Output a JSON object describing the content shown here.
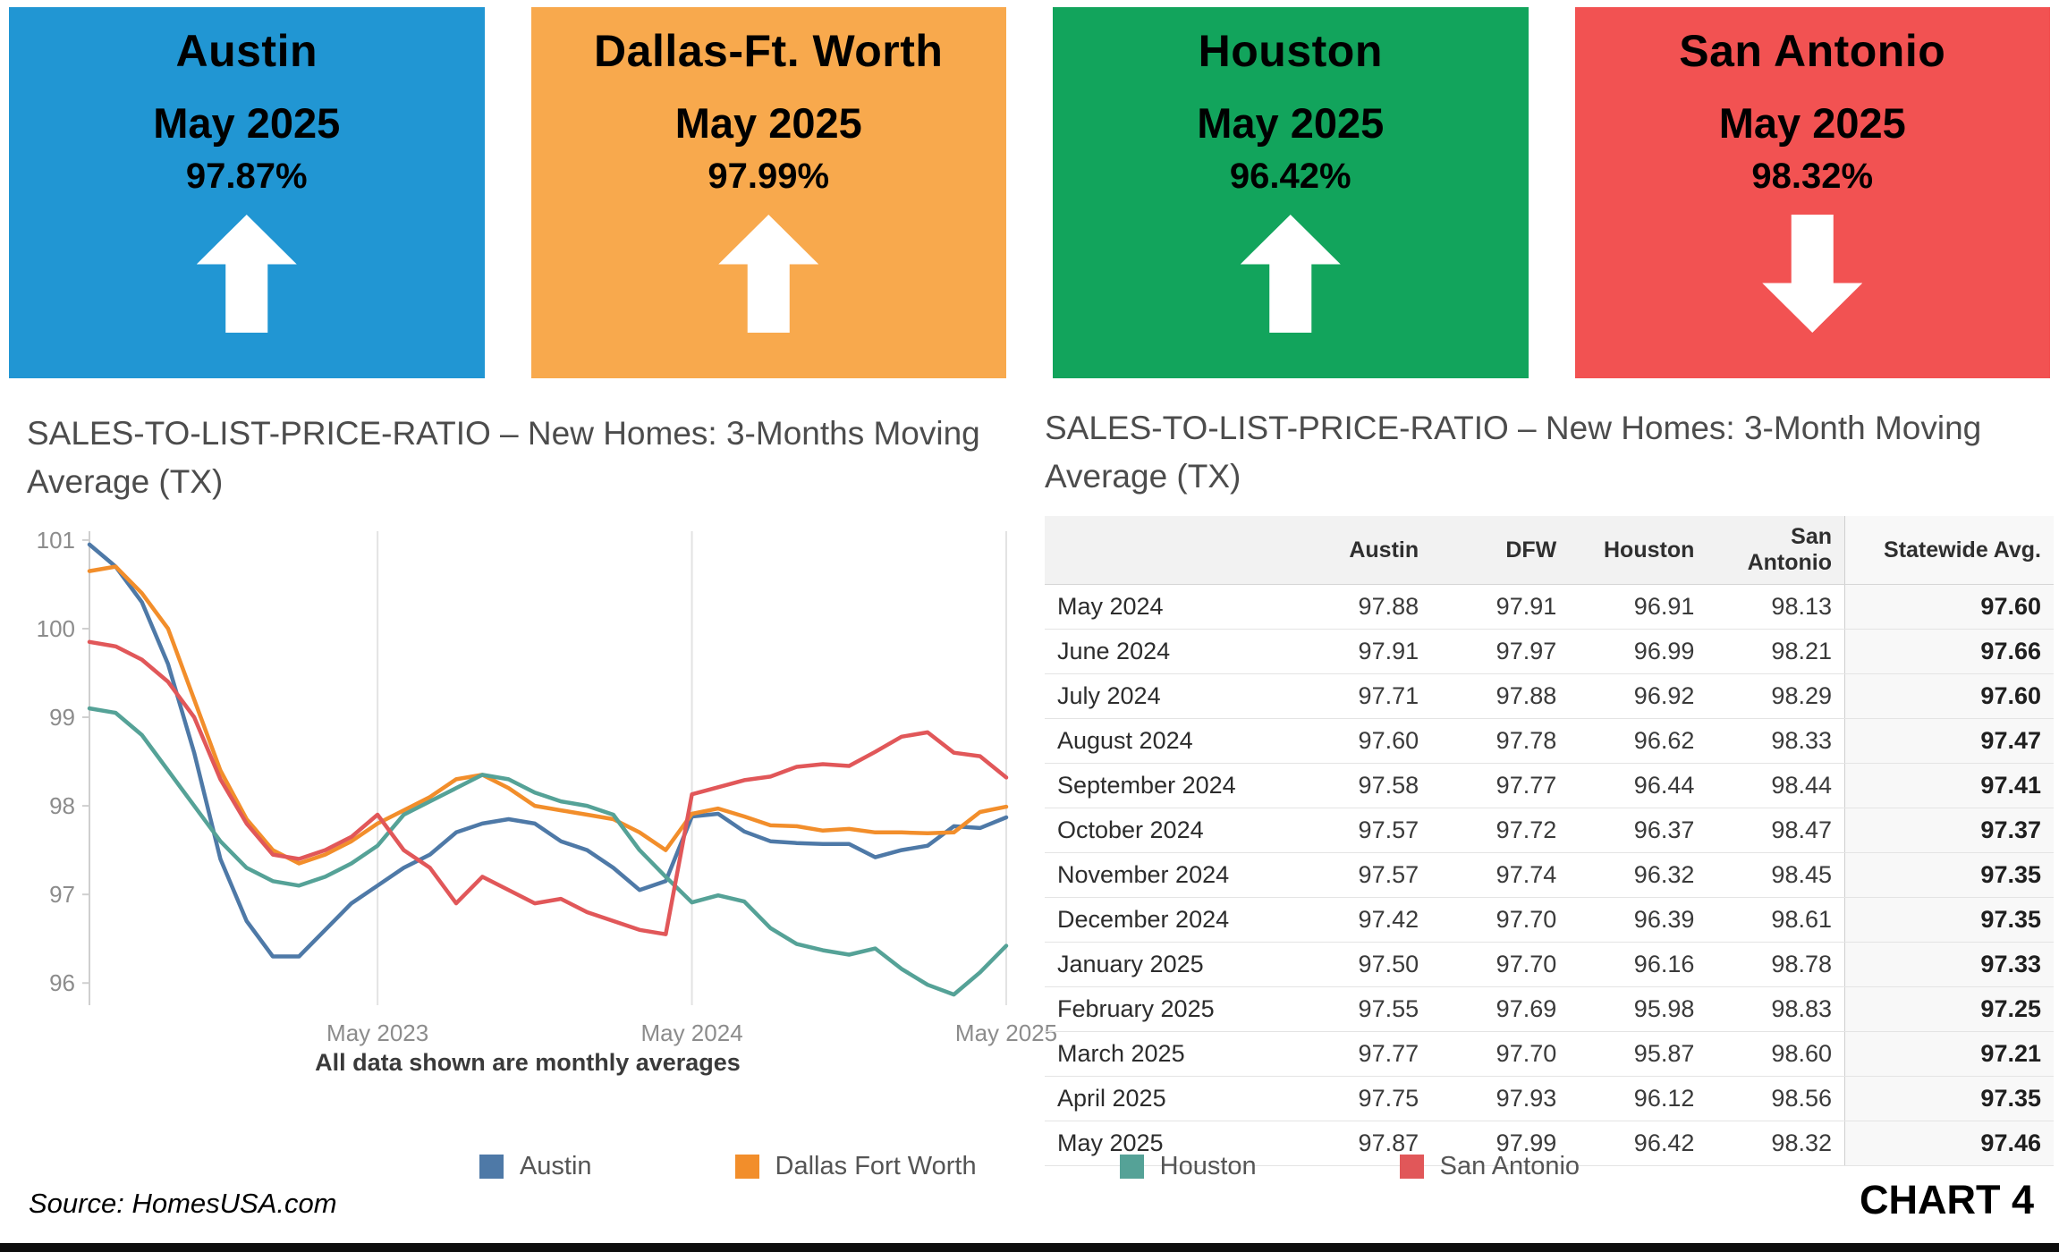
{
  "cards": [
    {
      "city": "Austin",
      "period": "May 2025",
      "value": "97.87%",
      "direction": "up",
      "color": "#2196d3"
    },
    {
      "city": "Dallas-Ft. Worth",
      "period": "May 2025",
      "value": "97.99%",
      "direction": "up",
      "color": "#f8a94d"
    },
    {
      "city": "Houston",
      "period": "May 2025",
      "value": "96.42%",
      "direction": "up",
      "color": "#12a45c"
    },
    {
      "city": "San Antonio",
      "period": "May 2025",
      "value": "98.32%",
      "direction": "down",
      "color": "#f25252"
    }
  ],
  "chart_data": [
    {
      "type": "line",
      "title": "SALES-TO-LIST-PRICE-RATIO – New Homes: 3-Months Moving Average (TX)",
      "caption": "All data shown are monthly averages",
      "xlabel": "",
      "ylabel": "",
      "ylim": [
        95.75,
        101.1
      ],
      "yticks": [
        96,
        97,
        98,
        99,
        100,
        101
      ],
      "x_tick_labels": [
        "May 2023",
        "May 2024",
        "May 2025"
      ],
      "legend_position": "bottom",
      "grid": "vertical-only",
      "x": [
        "Jun 2022",
        "Jul 2022",
        "Aug 2022",
        "Sep 2022",
        "Oct 2022",
        "Nov 2022",
        "Dec 2022",
        "Jan 2023",
        "Feb 2023",
        "Mar 2023",
        "Apr 2023",
        "May 2023",
        "Jun 2023",
        "Jul 2023",
        "Aug 2023",
        "Sep 2023",
        "Oct 2023",
        "Nov 2023",
        "Dec 2023",
        "Jan 2024",
        "Feb 2024",
        "Mar 2024",
        "Apr 2024",
        "May 2024",
        "Jun 2024",
        "Jul 2024",
        "Aug 2024",
        "Sep 2024",
        "Oct 2024",
        "Nov 2024",
        "Dec 2024",
        "Jan 2025",
        "Feb 2025",
        "Mar 2025",
        "Apr 2025",
        "May 2025"
      ],
      "series": [
        {
          "name": "Austin",
          "color": "#4e79a7",
          "values": [
            100.95,
            100.7,
            100.3,
            99.6,
            98.6,
            97.4,
            96.7,
            96.3,
            96.3,
            96.6,
            96.9,
            97.1,
            97.3,
            97.45,
            97.7,
            97.8,
            97.85,
            97.8,
            97.6,
            97.5,
            97.3,
            97.05,
            97.15,
            97.88,
            97.91,
            97.71,
            97.6,
            97.58,
            97.57,
            97.57,
            97.42,
            97.5,
            97.55,
            97.77,
            97.75,
            97.87
          ]
        },
        {
          "name": "Dallas Fort Worth",
          "color": "#f28e2b",
          "values": [
            100.65,
            100.7,
            100.4,
            100.0,
            99.2,
            98.4,
            97.85,
            97.5,
            97.35,
            97.45,
            97.6,
            97.8,
            97.95,
            98.1,
            98.3,
            98.35,
            98.2,
            98.0,
            97.95,
            97.9,
            97.85,
            97.7,
            97.5,
            97.91,
            97.97,
            97.88,
            97.78,
            97.77,
            97.72,
            97.74,
            97.7,
            97.7,
            97.69,
            97.7,
            97.93,
            97.99
          ]
        },
        {
          "name": "Houston",
          "color": "#55a297",
          "values": [
            99.1,
            99.05,
            98.8,
            98.4,
            98.0,
            97.6,
            97.3,
            97.15,
            97.1,
            97.2,
            97.35,
            97.55,
            97.9,
            98.05,
            98.2,
            98.35,
            98.3,
            98.15,
            98.05,
            98.0,
            97.9,
            97.5,
            97.2,
            96.91,
            96.99,
            96.92,
            96.62,
            96.44,
            96.37,
            96.32,
            96.39,
            96.16,
            95.98,
            95.87,
            96.12,
            96.42
          ]
        },
        {
          "name": "San Antonio",
          "color": "#e15759",
          "values": [
            99.85,
            99.8,
            99.65,
            99.4,
            99.0,
            98.3,
            97.8,
            97.45,
            97.4,
            97.5,
            97.65,
            97.9,
            97.5,
            97.3,
            96.9,
            97.2,
            97.05,
            96.9,
            96.95,
            96.8,
            96.7,
            96.6,
            96.55,
            98.13,
            98.21,
            98.29,
            98.33,
            98.44,
            98.47,
            98.45,
            98.61,
            98.78,
            98.83,
            98.6,
            98.56,
            98.32
          ]
        }
      ]
    },
    {
      "type": "table",
      "title": "SALES-TO-LIST-PRICE-RATIO – New Homes:  3-Month Moving Average (TX)",
      "columns": [
        "",
        "Austin",
        "DFW",
        "Houston",
        "San Antonio",
        "Statewide Avg."
      ],
      "rows": [
        [
          "May 2024",
          "97.88",
          "97.91",
          "96.91",
          "98.13",
          "97.60"
        ],
        [
          "June 2024",
          "97.91",
          "97.97",
          "96.99",
          "98.21",
          "97.66"
        ],
        [
          "July 2024",
          "97.71",
          "97.88",
          "96.92",
          "98.29",
          "97.60"
        ],
        [
          "August 2024",
          "97.60",
          "97.78",
          "96.62",
          "98.33",
          "97.47"
        ],
        [
          "September 2024",
          "97.58",
          "97.77",
          "96.44",
          "98.44",
          "97.41"
        ],
        [
          "October 2024",
          "97.57",
          "97.72",
          "96.37",
          "98.47",
          "97.37"
        ],
        [
          "November 2024",
          "97.57",
          "97.74",
          "96.32",
          "98.45",
          "97.35"
        ],
        [
          "December 2024",
          "97.42",
          "97.70",
          "96.39",
          "98.61",
          "97.35"
        ],
        [
          "January 2025",
          "97.50",
          "97.70",
          "96.16",
          "98.78",
          "97.33"
        ],
        [
          "February 2025",
          "97.55",
          "97.69",
          "95.98",
          "98.83",
          "97.25"
        ],
        [
          "March 2025",
          "97.77",
          "97.70",
          "95.87",
          "98.60",
          "97.21"
        ],
        [
          "April 2025",
          "97.75",
          "97.93",
          "96.12",
          "98.56",
          "97.35"
        ],
        [
          "May 2025",
          "97.87",
          "97.99",
          "96.42",
          "98.32",
          "97.46"
        ]
      ]
    }
  ],
  "footer": {
    "source": "Source: HomesUSA.com",
    "chart_label": "CHART 4"
  }
}
